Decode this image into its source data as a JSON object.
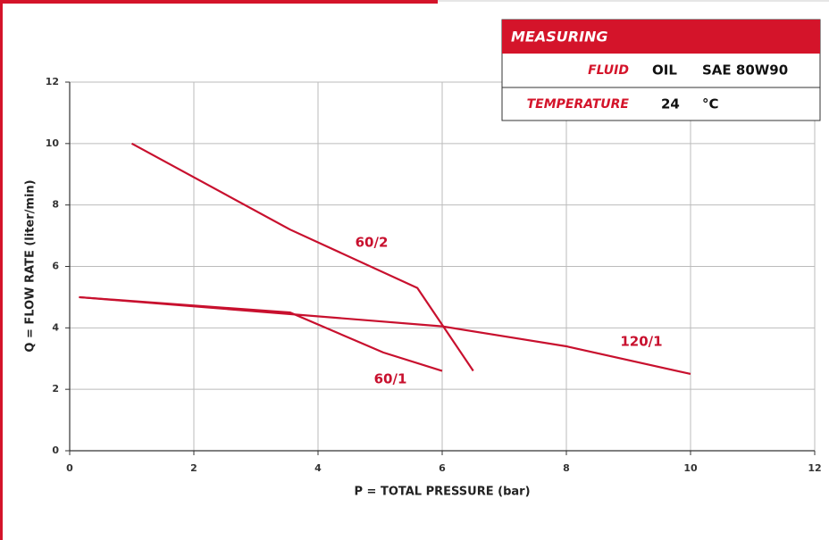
{
  "chart_data": {
    "type": "line",
    "xlabel": "P = TOTAL PRESSURE (bar)",
    "ylabel": "Q = FLOW RATE (liter/min)",
    "xlim": [
      0,
      12
    ],
    "ylim": [
      0,
      12
    ],
    "xticks": [
      0,
      2,
      4,
      6,
      8,
      10,
      12
    ],
    "yticks": [
      0,
      2,
      4,
      6,
      8,
      10,
      12
    ],
    "grid": true,
    "series": [
      {
        "name": "60/2",
        "color": "#c8102e",
        "x": [
          1,
          3.55,
          5.6,
          6.5
        ],
        "values": [
          10,
          7.2,
          5.3,
          2.6
        ]
      },
      {
        "name": "60/1",
        "color": "#c8102e",
        "x": [
          0.15,
          3.55,
          5.05,
          6
        ],
        "values": [
          5,
          4.5,
          3.2,
          2.6
        ]
      },
      {
        "name": "120/1",
        "color": "#c8102e",
        "x": [
          0.15,
          6,
          8,
          10
        ],
        "values": [
          5,
          4.05,
          3.4,
          2.5
        ]
      }
    ],
    "measuring": {
      "title": "MEASURING",
      "rows": [
        [
          "FLUID",
          "OIL",
          "SAE 80W90"
        ],
        [
          "TEMPERATURE",
          "24",
          "°C"
        ]
      ]
    }
  }
}
